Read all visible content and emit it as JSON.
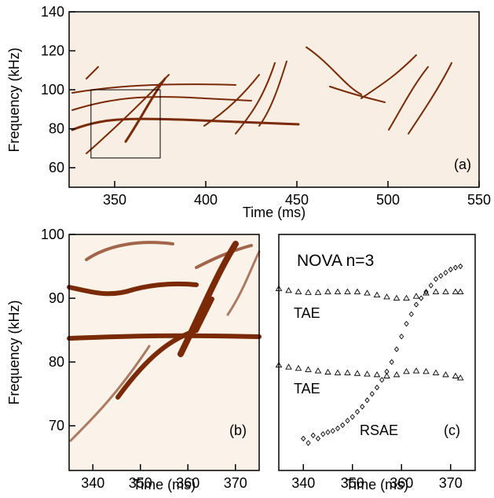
{
  "chart_data": [
    {
      "type": "spectrogram",
      "label": "(a)",
      "xlabel": "Time (ms)",
      "ylabel": "Frequency (kHz)",
      "xlim": [
        325,
        550
      ],
      "xticks": [
        350,
        400,
        450,
        500,
        550
      ],
      "ylim": [
        50,
        140
      ],
      "yticks": [
        60,
        80,
        100,
        120,
        140
      ],
      "zoom_box": {
        "xlim": [
          337,
          375
        ],
        "ylim": [
          65,
          100
        ]
      }
    },
    {
      "type": "spectrogram",
      "label": "(b)",
      "xlabel": "Time (ms)",
      "ylabel": "Frequency (kHz)",
      "xlim": [
        335,
        375
      ],
      "xticks": [
        340,
        350,
        360,
        370
      ],
      "ylim": [
        63,
        100
      ],
      "yticks": [
        70,
        80,
        90,
        100
      ]
    },
    {
      "type": "scatter",
      "label": "(c)",
      "xlabel": "Time (ms)",
      "title": "NOVA n=3",
      "xlim": [
        335,
        375
      ],
      "xticks": [
        340,
        350,
        360,
        370
      ],
      "ylim": [
        63,
        100
      ],
      "annotations": [
        "TAE",
        "TAE",
        "RSAE"
      ],
      "series": [
        {
          "marker": "triangle",
          "color": "#000000",
          "x": [
            335,
            337,
            339,
            341,
            343,
            345,
            347,
            349,
            351,
            353,
            355,
            357,
            359,
            361,
            363,
            365,
            367,
            369,
            371,
            372
          ],
          "values": [
            91.5,
            91.2,
            91,
            90.9,
            90.9,
            91,
            91,
            91,
            91,
            90.8,
            90.5,
            90.2,
            90,
            90,
            90.3,
            90.8,
            91,
            91,
            91,
            91
          ]
        },
        {
          "marker": "triangle",
          "color": "#000000",
          "x": [
            335,
            337,
            339,
            341,
            343,
            345,
            347,
            349,
            351,
            353,
            355,
            357,
            359,
            361,
            363,
            365,
            367,
            369,
            371,
            372
          ],
          "values": [
            79.5,
            79.2,
            79,
            78.8,
            78.6,
            78.4,
            78.3,
            78.3,
            78.2,
            78.1,
            78,
            77.8,
            78,
            78.5,
            78.6,
            78.5,
            78.3,
            78,
            77.8,
            77.5
          ]
        },
        {
          "marker": "diamond",
          "color": "#000000",
          "x": [
            340,
            341,
            342,
            343,
            344,
            345,
            346,
            347,
            348,
            349,
            350,
            351,
            352,
            353,
            354,
            355,
            356,
            357,
            358,
            359,
            360,
            361,
            362,
            363,
            364,
            365,
            366,
            367,
            368,
            369,
            370,
            371,
            372
          ],
          "values": [
            68,
            67.3,
            68.5,
            68,
            68.7,
            69,
            69.2,
            69.6,
            70.1,
            70.8,
            71.4,
            72.2,
            73,
            74,
            75,
            76,
            77.2,
            78.5,
            80,
            82,
            84,
            86,
            87.5,
            89,
            90,
            91,
            92,
            93,
            93.5,
            94,
            94.5,
            94.8,
            95
          ]
        }
      ]
    }
  ]
}
